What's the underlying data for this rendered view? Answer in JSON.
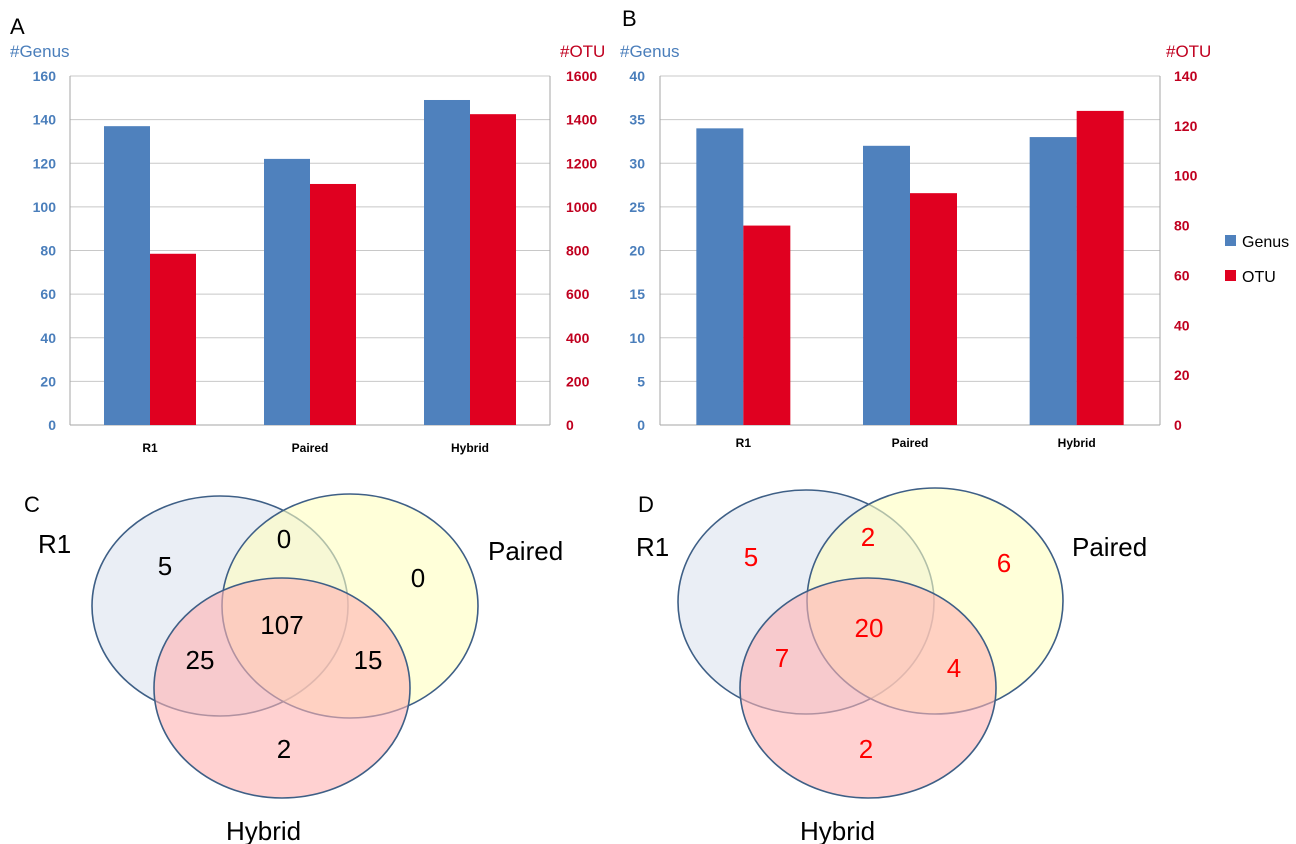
{
  "panels": {
    "a": "A",
    "b": "B",
    "c": "C",
    "d": "D"
  },
  "colors": {
    "genus": "#4F81BD",
    "otu": "#E00020",
    "left_axis_text": "#4A7EBB",
    "right_axis_text": "#C0001F",
    "grid": "#C8C8C8",
    "venn_r1": "#DCE3EF",
    "venn_paired": "#FFFFC0",
    "venn_hybrid": "#FFB3B3",
    "venn_stroke": "#3E5F86"
  },
  "chart_data": [
    {
      "type": "bar",
      "panel": "A",
      "categories": [
        "R1",
        "Paired",
        "Hybrid"
      ],
      "ylabel_left": "#Genus",
      "ylabel_right": "#OTU",
      "ylim_left": [
        0,
        160
      ],
      "yticks_left": [
        0,
        20,
        40,
        60,
        80,
        100,
        120,
        140,
        160
      ],
      "ylim_right": [
        0,
        1600
      ],
      "yticks_right": [
        0,
        200,
        400,
        600,
        800,
        1000,
        1200,
        1400,
        1600
      ],
      "grid": true,
      "series": [
        {
          "name": "Genus",
          "axis": "left",
          "values": [
            137,
            122,
            149
          ]
        },
        {
          "name": "OTU",
          "axis": "right",
          "values": [
            785,
            1105,
            1425
          ]
        }
      ]
    },
    {
      "type": "bar",
      "panel": "B",
      "categories": [
        "R1",
        "Paired",
        "Hybrid"
      ],
      "ylabel_left": "#Genus",
      "ylabel_right": "#OTU",
      "ylim_left": [
        0,
        40
      ],
      "yticks_left": [
        0,
        5,
        10,
        15,
        20,
        25,
        30,
        35,
        40
      ],
      "ylim_right": [
        0,
        140
      ],
      "yticks_right": [
        0,
        20,
        40,
        60,
        80,
        100,
        120,
        140
      ],
      "grid": true,
      "legend_position": "right",
      "series": [
        {
          "name": "Genus",
          "axis": "left",
          "values": [
            34,
            32,
            33
          ]
        },
        {
          "name": "OTU",
          "axis": "right",
          "values": [
            80,
            93,
            126
          ]
        }
      ]
    }
  ],
  "venn": [
    {
      "panel": "C",
      "sets": {
        "r1": "R1",
        "paired": "Paired",
        "hybrid": "Hybrid"
      },
      "number_color": "#000000",
      "regions": {
        "r1_only": "5",
        "paired_only": "0",
        "hybrid_only": "2",
        "r1_paired": "0",
        "r1_hybrid": "25",
        "paired_hybrid": "15",
        "all": "107"
      }
    },
    {
      "panel": "D",
      "sets": {
        "r1": "R1",
        "paired": "Paired",
        "hybrid": "Hybrid"
      },
      "number_color": "#FF0000",
      "regions": {
        "r1_only": "5",
        "paired_only": "6",
        "hybrid_only": "2",
        "r1_paired": "2",
        "r1_hybrid": "7",
        "paired_hybrid": "4",
        "all": "20"
      }
    }
  ]
}
